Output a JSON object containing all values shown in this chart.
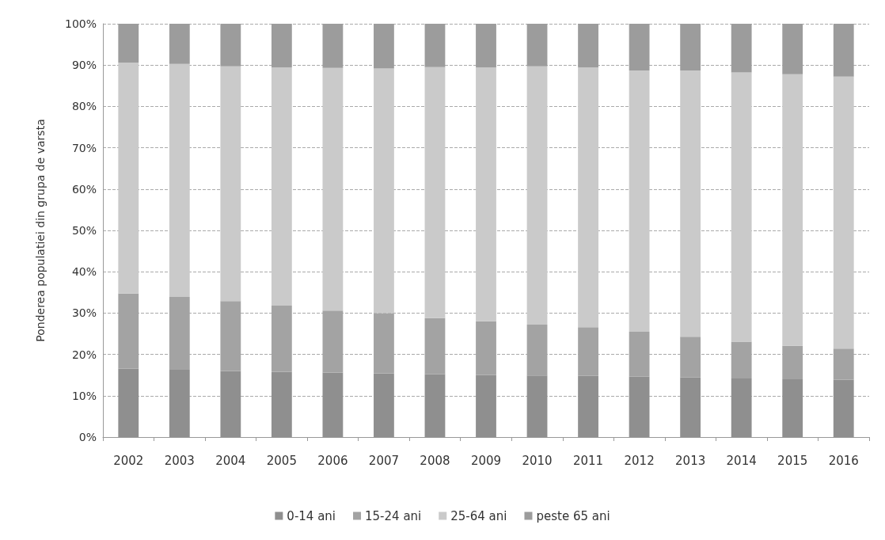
{
  "chart_data": {
    "type": "bar",
    "stacked": true,
    "ylabel": "Ponderea populatiei din grupa de varsta",
    "categories": [
      "2002",
      "2003",
      "2004",
      "2005",
      "2006",
      "2007",
      "2008",
      "2009",
      "2010",
      "2011",
      "2012",
      "2013",
      "2014",
      "2015",
      "2016"
    ],
    "series": [
      {
        "name": "0-14 ani",
        "color": "#8f8f8f",
        "values": [
          16.5,
          16.3,
          16.0,
          15.8,
          15.6,
          15.4,
          15.2,
          15.0,
          14.9,
          14.8,
          14.6,
          14.4,
          14.2,
          14.0,
          13.9
        ]
      },
      {
        "name": "15-24 ani",
        "color": "#a3a3a3",
        "values": [
          18.2,
          17.6,
          16.9,
          16.0,
          15.0,
          14.6,
          13.6,
          13.0,
          12.3,
          11.8,
          10.9,
          9.9,
          8.9,
          8.1,
          7.5
        ]
      },
      {
        "name": "25-64 ani",
        "color": "#cacaca",
        "values": [
          55.9,
          56.4,
          56.8,
          57.6,
          58.7,
          59.2,
          60.7,
          61.4,
          62.5,
          62.8,
          63.2,
          64.4,
          65.1,
          65.7,
          65.8
        ]
      },
      {
        "name": "peste 65 ani",
        "color": "#9c9c9c",
        "values": [
          9.4,
          9.7,
          10.3,
          10.6,
          10.7,
          10.8,
          10.5,
          10.6,
          10.3,
          10.6,
          11.3,
          11.3,
          11.8,
          12.2,
          12.8
        ]
      }
    ],
    "ylim": [
      0,
      100
    ],
    "yticks": [
      {
        "value": 0,
        "label": "0%"
      },
      {
        "value": 10,
        "label": "10%"
      },
      {
        "value": 20,
        "label": "20%"
      },
      {
        "value": 30,
        "label": "30%"
      },
      {
        "value": 40,
        "label": "40%"
      },
      {
        "value": 50,
        "label": "50%"
      },
      {
        "value": 60,
        "label": "60%"
      },
      {
        "value": 70,
        "label": "70%"
      },
      {
        "value": 80,
        "label": "80%"
      },
      {
        "value": 90,
        "label": "90%"
      },
      {
        "value": 100,
        "label": "100%"
      }
    ],
    "grid": "y",
    "line_style": "dashed",
    "legend": "bottom"
  }
}
